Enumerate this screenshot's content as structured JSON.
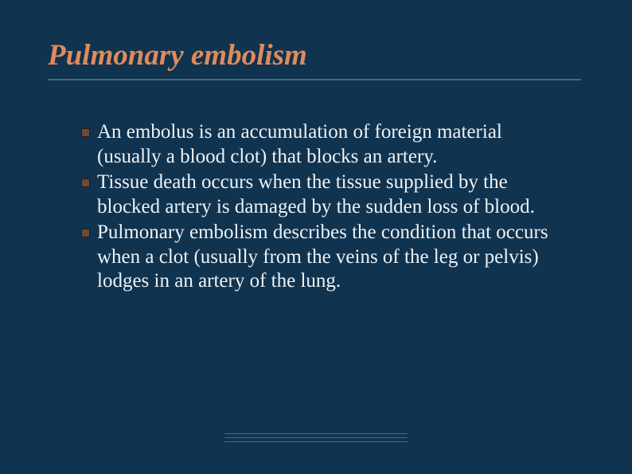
{
  "slide": {
    "title": "Pulmonary embolism",
    "bullets": [
      "An embolus is an accumulation of foreign material (usually a blood clot) that blocks an artery.",
      "Tissue death occurs when the tissue supplied by the blocked artery is damaged by the sudden loss of blood.",
      "Pulmonary embolism describes the condition that occurs when a clot (usually from the veins of the leg or pelvis) lodges in an artery of the lung."
    ]
  },
  "style": {
    "background_color": "#10334f",
    "title_color": "#e08a5a",
    "title_fontsize": 37,
    "title_font_style": "italic",
    "title_font_weight": "bold",
    "body_color": "#eef2f5",
    "body_fontsize": 25,
    "underline_color": "#4a6a82",
    "bullet_icon_color": "#6a4a3a",
    "bullet_icon_border": "#2a1a10",
    "slide_width": 794,
    "slide_height": 595
  }
}
